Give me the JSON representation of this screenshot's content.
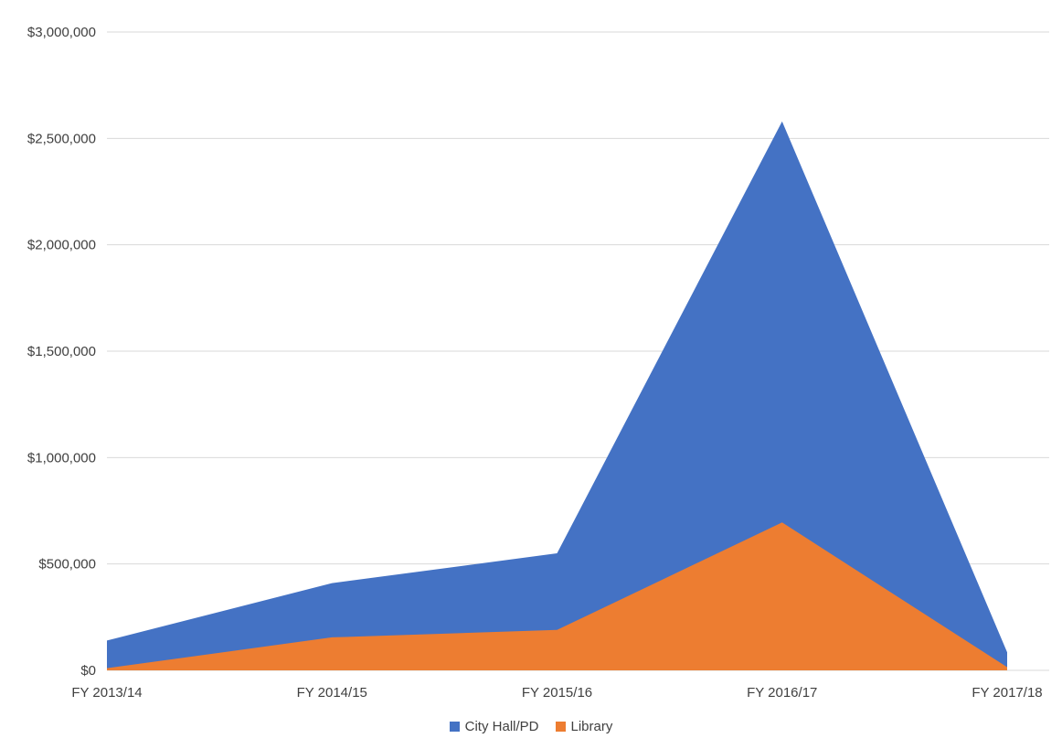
{
  "chart_data": {
    "type": "area",
    "mode": "overlap",
    "categories": [
      "FY 2013/14",
      "FY 2014/15",
      "FY 2015/16",
      "FY 2016/17",
      "FY 2017/18"
    ],
    "series": [
      {
        "name": "City Hall/PD",
        "color": "#4472C4",
        "values": [
          140000,
          410000,
          550000,
          2580000,
          85000
        ]
      },
      {
        "name": "Library",
        "color": "#ED7D31",
        "values": [
          10000,
          155000,
          190000,
          695000,
          15000
        ]
      }
    ],
    "ylim": [
      0,
      3000000
    ],
    "y_tick_step": 500000,
    "y_tick_labels": [
      "$0",
      "$500,000",
      "$1,000,000",
      "$1,500,000",
      "$2,000,000",
      "$2,500,000",
      "$3,000,000"
    ],
    "grid": true,
    "legend_position": "bottom",
    "colors": {
      "gridline": "#D9D9D9",
      "axis_text": "#404040",
      "background": "#FFFFFF"
    }
  }
}
